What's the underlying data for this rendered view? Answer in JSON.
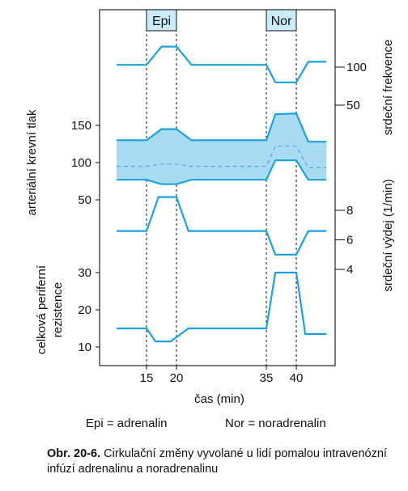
{
  "chart_data": {
    "type": "line",
    "xlabel": "čas (min)",
    "x_ticks": [
      15,
      20,
      35,
      40
    ],
    "xlim": [
      10,
      45
    ],
    "periods": [
      {
        "label": "Epi",
        "start": 15,
        "end": 20
      },
      {
        "label": "Nor",
        "start": 35,
        "end": 40
      }
    ],
    "panels": [
      {
        "name": "srdeční frekvence",
        "axis_label": "srdeční frekvence",
        "axis_side": "right",
        "ticks": [
          50,
          100
        ],
        "ylim": [
          20,
          140
        ],
        "series": [
          {
            "x": [
              10,
              15,
              17.5,
              20,
              22.5,
              35,
              36.5,
              40,
              42,
              45
            ],
            "y": [
              103,
              103,
              127,
              127,
              103,
              103,
              80,
              80,
              107,
              107
            ]
          }
        ]
      },
      {
        "name": "arteriální krevní tlak",
        "axis_label": "arteriální krevní tlak",
        "axis_side": "left",
        "ticks": [
          50,
          100,
          150
        ],
        "ylim": [
          40,
          180
        ],
        "systolic": {
          "x": [
            10,
            15,
            17.5,
            20,
            22.5,
            35,
            36.5,
            40,
            42,
            45
          ],
          "y": [
            130,
            130,
            145,
            145,
            130,
            130,
            165,
            166,
            128,
            128
          ]
        },
        "diastolic": {
          "x": [
            10,
            15,
            17.5,
            20,
            22.5,
            35,
            36.5,
            40,
            42,
            45
          ],
          "y": [
            77,
            77,
            71,
            71,
            77,
            77,
            103,
            103,
            77,
            77
          ]
        },
        "mean": {
          "x": [
            10,
            15,
            17.5,
            20,
            22.5,
            35,
            36.5,
            40,
            42,
            45
          ],
          "y": [
            95,
            95,
            98,
            98,
            95,
            95,
            122,
            122,
            93,
            93
          ]
        }
      },
      {
        "name": "srdeční výdej",
        "axis_label": "srdeční výdej  (1/min)",
        "axis_side": "right",
        "ticks": [
          4,
          6,
          8
        ],
        "ylim": [
          0,
          10
        ],
        "series": [
          {
            "x": [
              10,
              15,
              17,
              20,
              22,
              35,
              36.5,
              40,
              42,
              45
            ],
            "y": [
              6.6,
              6.6,
              8.9,
              8.9,
              6.6,
              6.6,
              5.0,
              5.0,
              6.6,
              6.6
            ]
          }
        ]
      },
      {
        "name": "celková periferní rezistence",
        "axis_label": "celková periferní rezistence",
        "axis_side": "left",
        "ticks": [
          10,
          20,
          30
        ],
        "ylim": [
          0,
          40
        ],
        "series": [
          {
            "x": [
              10,
              15,
              16.5,
              19,
              22,
              35,
              36.5,
              40,
              41.5,
              45
            ],
            "y": [
              15,
              15,
              11.5,
              11.5,
              15,
              15,
              30,
              30,
              13.5,
              13.5
            ]
          }
        ]
      }
    ],
    "colors": {
      "line": "#1aa3e0",
      "band": "#a9dcf3",
      "mean": "#5aa6dd",
      "axis": "#222222"
    }
  },
  "legend": {
    "epi": "Epi = adrenalin",
    "nor": "Nor = noradrenalin"
  },
  "caption": {
    "label": "Obr. 20-6.",
    "text": "Cirkulační změny vyvolané u lidí pomalou intravenózní infúzí adrenalinu a noradrenalinu"
  }
}
